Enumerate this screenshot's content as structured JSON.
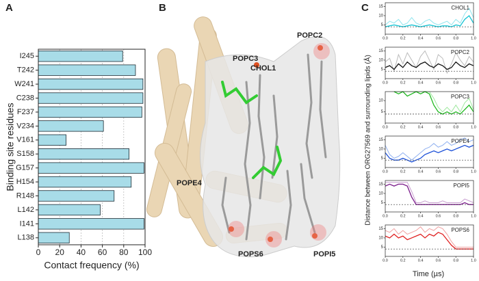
{
  "panels": [
    "A",
    "B",
    "C"
  ],
  "structure_labels": [
    "POPC2",
    "POPC3",
    "CHOL1",
    "POPE4",
    "POPS6",
    "POPI5"
  ],
  "panel_c": {
    "ylabel": "Distance between ORG27569 and surrounding lipids (Å)",
    "xlabel": "Time (µs)"
  },
  "chart_data": [
    {
      "type": "bar",
      "orientation": "horizontal",
      "xlabel": "Contact frequency (%)",
      "ylabel": "Binding site residues",
      "categories": [
        "I245",
        "T242",
        "W241",
        "C238",
        "F237",
        "V234",
        "V161",
        "S158",
        "G157",
        "H154",
        "R148",
        "L142",
        "I141",
        "L138"
      ],
      "values": [
        79,
        91,
        98,
        98,
        97,
        61,
        26,
        85,
        99,
        87,
        71,
        58,
        99,
        29
      ],
      "color": "#a8dce8",
      "xlim": [
        0,
        100
      ],
      "xticks": [
        0,
        20,
        40,
        60,
        80,
        100
      ],
      "grid": true
    },
    {
      "type": "line",
      "title": "CHOL1",
      "xlim": [
        0,
        1
      ],
      "ylim": [
        0,
        17
      ],
      "yticks": [
        5,
        10,
        15
      ],
      "reference_line": 4,
      "xticks": [
        {
          "value": 0,
          "label": "0.0"
        },
        0.2,
        0.4,
        0.6,
        0.8,
        {
          "value": 1,
          "label": "1.0"
        }
      ],
      "x": [
        0,
        0.05,
        0.1,
        0.15,
        0.2,
        0.25,
        0.3,
        0.35,
        0.4,
        0.45,
        0.5,
        0.55,
        0.6,
        0.65,
        0.7,
        0.75,
        0.8,
        0.85,
        0.9,
        0.95,
        1
      ],
      "series": [
        {
          "color": "#8fe5ee",
          "values": [
            5,
            7,
            6,
            8,
            5,
            6,
            9,
            6,
            5,
            7,
            8,
            6,
            5,
            6,
            7,
            5,
            8,
            6,
            11,
            14,
            9
          ]
        },
        {
          "color": "#13c3d3",
          "values": [
            4,
            4.5,
            5,
            4.5,
            4,
            4.5,
            5,
            4.5,
            4,
            4.5,
            5,
            4.5,
            4,
            4.5,
            4.5,
            4,
            5,
            4.5,
            8,
            10,
            6
          ]
        }
      ]
    },
    {
      "type": "line",
      "title": "POPC2",
      "xlim": [
        0,
        1
      ],
      "ylim": [
        0,
        17
      ],
      "yticks": [
        5,
        10,
        15
      ],
      "reference_line": 4,
      "xticks": [
        {
          "value": 0,
          "label": "0.0"
        },
        0.2,
        0.4,
        0.6,
        0.8,
        {
          "value": 1,
          "label": "1.0"
        }
      ],
      "x": [
        0,
        0.05,
        0.1,
        0.15,
        0.2,
        0.25,
        0.3,
        0.35,
        0.4,
        0.45,
        0.5,
        0.55,
        0.6,
        0.65,
        0.7,
        0.75,
        0.8,
        0.85,
        0.9,
        0.95,
        1
      ],
      "series": [
        {
          "color": "#bbbbbb",
          "values": [
            9,
            11,
            4,
            13,
            8,
            14,
            10,
            6,
            12,
            15,
            10,
            5,
            13,
            11,
            3,
            8,
            14,
            10,
            7,
            12,
            9
          ]
        },
        {
          "color": "#111111",
          "values": [
            6,
            7,
            5,
            8,
            6,
            9,
            7,
            6,
            8,
            9,
            7,
            6,
            8,
            7,
            5,
            6,
            9,
            7,
            6,
            8,
            7
          ]
        }
      ]
    },
    {
      "type": "line",
      "title": "POPC3",
      "xlim": [
        0,
        1
      ],
      "ylim": [
        0,
        14
      ],
      "yticks": [
        5,
        10
      ],
      "reference_line": 4,
      "xticks": [
        {
          "value": 0,
          "label": "0.0"
        },
        0.2,
        0.4,
        0.6,
        0.8,
        {
          "value": 1,
          "label": "1.0"
        }
      ],
      "x": [
        0,
        0.05,
        0.1,
        0.15,
        0.2,
        0.25,
        0.3,
        0.35,
        0.4,
        0.45,
        0.5,
        0.55,
        0.6,
        0.65,
        0.7,
        0.75,
        0.8,
        0.85,
        0.9,
        0.95,
        1
      ],
      "series": [
        {
          "color": "#9fe89f",
          "values": [
            null,
            null,
            14,
            14,
            14,
            14,
            14,
            14,
            14,
            14,
            14,
            11,
            7,
            5,
            7,
            5,
            8,
            5,
            9,
            11,
            6
          ]
        },
        {
          "color": "#1fb81f",
          "values": [
            null,
            null,
            14,
            13,
            14,
            12,
            13,
            14,
            13,
            14,
            13,
            8,
            5,
            4,
            5,
            4,
            5,
            4,
            6,
            8,
            5
          ]
        }
      ]
    },
    {
      "type": "line",
      "title": "POPE4",
      "xlim": [
        0,
        1
      ],
      "ylim": [
        0,
        17
      ],
      "yticks": [
        5,
        10,
        15
      ],
      "reference_line": 4,
      "xticks": [
        {
          "value": 0,
          "label": "0.0"
        },
        0.2,
        0.4,
        0.6,
        0.8,
        {
          "value": 1,
          "label": "1.0"
        }
      ],
      "x": [
        0,
        0.05,
        0.1,
        0.15,
        0.2,
        0.25,
        0.3,
        0.35,
        0.4,
        0.45,
        0.5,
        0.55,
        0.6,
        0.65,
        0.7,
        0.75,
        0.8,
        0.85,
        0.9,
        0.95,
        1
      ],
      "series": [
        {
          "color": "#8fb0f0",
          "values": [
            12,
            7,
            5,
            6,
            8,
            6,
            4,
            6,
            8,
            10,
            11,
            13,
            11,
            12,
            14,
            12,
            13,
            15,
            16,
            14,
            15
          ]
        },
        {
          "color": "#1a4fd8",
          "values": [
            8,
            5,
            4,
            4,
            5,
            4,
            3,
            4,
            5,
            7,
            8,
            9,
            8,
            9,
            10,
            9,
            10,
            11,
            12,
            11,
            12
          ]
        }
      ]
    },
    {
      "type": "line",
      "title": "POPI5",
      "xlim": [
        0,
        1
      ],
      "ylim": [
        0,
        17
      ],
      "yticks": [
        5,
        10,
        15
      ],
      "reference_line": 4,
      "xticks": [
        {
          "value": 0,
          "label": "0.0"
        },
        0.2,
        0.4,
        0.6,
        0.8,
        {
          "value": 1,
          "label": "1.0"
        }
      ],
      "x": [
        0,
        0.05,
        0.1,
        0.15,
        0.2,
        0.25,
        0.3,
        0.35,
        0.4,
        0.45,
        0.5,
        0.55,
        0.6,
        0.65,
        0.7,
        0.75,
        0.8,
        0.85,
        0.9,
        0.95,
        1
      ],
      "series": [
        {
          "color": "#c99fd0",
          "values": [
            16,
            16,
            16,
            16,
            16,
            16,
            11,
            5,
            5,
            6,
            5,
            5,
            5,
            6,
            5,
            5,
            5,
            5,
            7,
            6,
            5
          ]
        },
        {
          "color": "#7a1a8a",
          "values": [
            14,
            15,
            14,
            15,
            15,
            14,
            8,
            4,
            4,
            4,
            4,
            4,
            4,
            4,
            4,
            4,
            4,
            4,
            5,
            4,
            4
          ]
        }
      ]
    },
    {
      "type": "line",
      "title": "POPS6",
      "xlim": [
        0,
        1
      ],
      "ylim": [
        0,
        17
      ],
      "yticks": [
        5,
        10,
        15
      ],
      "reference_line": 4,
      "xticks": [
        {
          "value": 0,
          "label": "0.0"
        },
        0.2,
        0.4,
        0.6,
        0.8,
        {
          "value": 1,
          "label": "1.0"
        }
      ],
      "x": [
        0,
        0.05,
        0.1,
        0.15,
        0.2,
        0.25,
        0.3,
        0.35,
        0.4,
        0.45,
        0.5,
        0.55,
        0.6,
        0.65,
        0.7,
        0.75,
        0.8,
        0.85,
        0.9,
        0.95,
        1
      ],
      "series": [
        {
          "color": "#f0a0a0",
          "values": [
            14,
            13,
            15,
            12,
            14,
            12,
            13,
            14,
            16,
            13,
            15,
            14,
            16,
            15,
            12,
            8,
            5,
            5,
            5,
            5,
            5
          ]
        },
        {
          "color": "#e02020",
          "values": [
            11,
            10,
            12,
            10,
            11,
            9,
            10,
            11,
            12,
            10,
            12,
            11,
            13,
            12,
            9,
            6,
            4,
            4,
            4,
            4,
            4
          ]
        }
      ]
    }
  ]
}
